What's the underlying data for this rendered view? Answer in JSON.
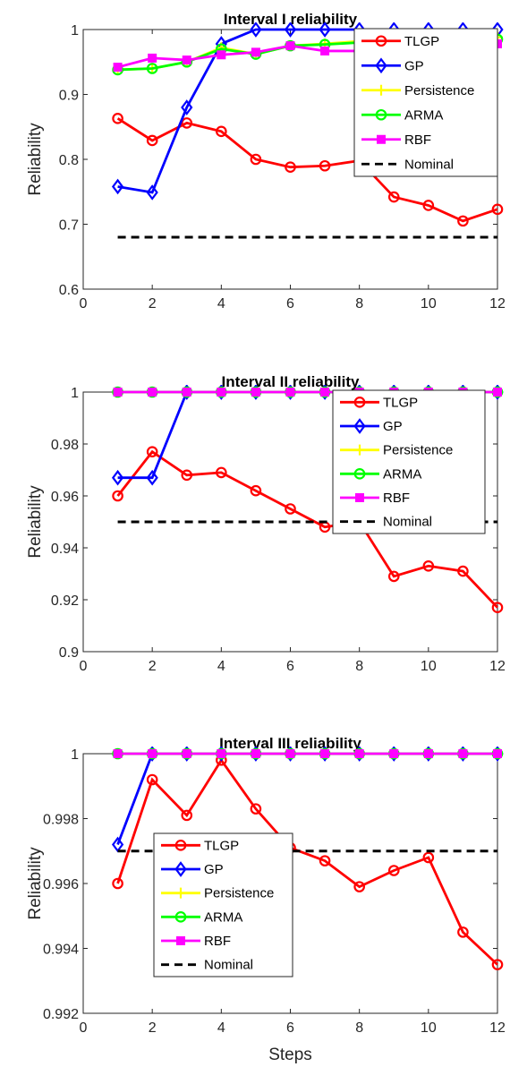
{
  "chart_data": [
    {
      "type": "line",
      "title": "Interval I reliability",
      "xlabel": "",
      "ylabel": "Reliability",
      "xlim": [
        0,
        12
      ],
      "ylim": [
        0.6,
        1
      ],
      "xticks": [
        0,
        2,
        4,
        6,
        8,
        10,
        12
      ],
      "yticks": [
        0.6,
        0.7,
        0.8,
        0.9,
        1
      ],
      "ytick_labels": [
        "0.6",
        "0.7",
        "0.8",
        "0.9",
        "1"
      ],
      "x": [
        1,
        2,
        3,
        4,
        5,
        6,
        7,
        8,
        9,
        10,
        11,
        12
      ],
      "grid": false,
      "legend_position": "top-right",
      "series": [
        {
          "name": "TLGP",
          "color": "#ff0000",
          "marker": "circle",
          "values": [
            0.863,
            0.829,
            0.856,
            0.843,
            0.8,
            0.788,
            0.79,
            0.798,
            0.742,
            0.729,
            0.705,
            0.723
          ]
        },
        {
          "name": "GP",
          "color": "#0000ff",
          "marker": "diamond",
          "values": [
            0.758,
            0.749,
            0.88,
            0.978,
            1.0,
            1.0,
            1.0,
            1.0,
            1.0,
            1.0,
            1.0,
            1.0
          ]
        },
        {
          "name": "Persistence",
          "color": "#ffff00",
          "marker": "plus",
          "values": [
            0.938,
            0.94,
            0.95,
            0.972,
            0.962,
            0.975,
            0.978,
            0.982,
            0.988,
            0.988,
            0.99,
            0.988
          ]
        },
        {
          "name": "ARMA",
          "color": "#00ff00",
          "marker": "circle",
          "values": [
            0.938,
            0.94,
            0.95,
            0.97,
            0.962,
            0.975,
            0.977,
            0.98,
            0.987,
            0.982,
            0.985,
            0.985
          ]
        },
        {
          "name": "RBF",
          "color": "#ff00ff",
          "marker": "square",
          "values": [
            0.942,
            0.956,
            0.953,
            0.961,
            0.965,
            0.975,
            0.967,
            0.967,
            0.965,
            0.975,
            0.978,
            0.978
          ]
        },
        {
          "name": "Nominal",
          "color": "#000000",
          "marker": "none",
          "dashed": true,
          "values": [
            0.68,
            0.68,
            0.68,
            0.68,
            0.68,
            0.68,
            0.68,
            0.68,
            0.68,
            0.68,
            0.68,
            0.68
          ]
        }
      ]
    },
    {
      "type": "line",
      "title": "Interval II reliability",
      "xlabel": "",
      "ylabel": "Reliability",
      "xlim": [
        0,
        12
      ],
      "ylim": [
        0.9,
        1
      ],
      "xticks": [
        0,
        2,
        4,
        6,
        8,
        10,
        12
      ],
      "yticks": [
        0.9,
        0.92,
        0.94,
        0.96,
        0.98,
        1
      ],
      "ytick_labels": [
        "0.9",
        "0.92",
        "0.94",
        "0.96",
        "0.98",
        "1"
      ],
      "x": [
        1,
        2,
        3,
        4,
        5,
        6,
        7,
        8,
        9,
        10,
        11,
        12
      ],
      "grid": false,
      "legend_position": "top-right",
      "series": [
        {
          "name": "TLGP",
          "color": "#ff0000",
          "marker": "circle",
          "values": [
            0.96,
            0.977,
            0.968,
            0.969,
            0.962,
            0.955,
            0.948,
            0.95,
            0.929,
            0.933,
            0.931,
            0.917
          ]
        },
        {
          "name": "GP",
          "color": "#0000ff",
          "marker": "diamond",
          "values": [
            0.967,
            0.967,
            1.0,
            1.0,
            1.0,
            1.0,
            1.0,
            1.0,
            1.0,
            1.0,
            1.0,
            1.0
          ]
        },
        {
          "name": "Persistence",
          "color": "#ffff00",
          "marker": "plus",
          "values": [
            1,
            1,
            1,
            1,
            1,
            1,
            1,
            1,
            1,
            1,
            1,
            1
          ]
        },
        {
          "name": "ARMA",
          "color": "#00ff00",
          "marker": "circle",
          "values": [
            1,
            1,
            1,
            1,
            1,
            1,
            1,
            1,
            1,
            1,
            1,
            1
          ]
        },
        {
          "name": "RBF",
          "color": "#ff00ff",
          "marker": "square",
          "values": [
            1,
            1,
            1,
            1,
            1,
            1,
            1,
            1,
            1,
            1,
            1,
            1
          ]
        },
        {
          "name": "Nominal",
          "color": "#000000",
          "marker": "none",
          "dashed": true,
          "values": [
            0.95,
            0.95,
            0.95,
            0.95,
            0.95,
            0.95,
            0.95,
            0.95,
            0.95,
            0.95,
            0.95,
            0.95
          ]
        }
      ]
    },
    {
      "type": "line",
      "title": "Interval III reliability",
      "xlabel": "Steps",
      "ylabel": "Reliability",
      "xlim": [
        0,
        12
      ],
      "ylim": [
        0.992,
        1
      ],
      "xticks": [
        0,
        2,
        4,
        6,
        8,
        10,
        12
      ],
      "yticks": [
        0.992,
        0.994,
        0.996,
        0.998,
        1
      ],
      "ytick_labels": [
        "0.992",
        "0.994",
        "0.996",
        "0.998",
        "1"
      ],
      "x": [
        1,
        2,
        3,
        4,
        5,
        6,
        7,
        8,
        9,
        10,
        11,
        12
      ],
      "grid": false,
      "legend_position": "bottom-left",
      "series": [
        {
          "name": "TLGP",
          "color": "#ff0000",
          "marker": "circle",
          "values": [
            0.996,
            0.9992,
            0.9981,
            0.9998,
            0.9983,
            0.9971,
            0.9967,
            0.9959,
            0.9964,
            0.9968,
            0.9945,
            0.9935
          ]
        },
        {
          "name": "GP",
          "color": "#0000ff",
          "marker": "diamond",
          "values": [
            0.9972,
            1,
            1,
            1,
            1,
            1,
            1,
            1,
            1,
            1,
            1,
            1
          ]
        },
        {
          "name": "Persistence",
          "color": "#ffff00",
          "marker": "plus",
          "values": [
            1,
            1,
            1,
            1,
            1,
            1,
            1,
            1,
            1,
            1,
            1,
            1
          ]
        },
        {
          "name": "ARMA",
          "color": "#00ff00",
          "marker": "circle",
          "values": [
            1,
            1,
            1,
            1,
            1,
            1,
            1,
            1,
            1,
            1,
            1,
            1
          ]
        },
        {
          "name": "RBF",
          "color": "#ff00ff",
          "marker": "square",
          "values": [
            1,
            1,
            1,
            1,
            1,
            1,
            1,
            1,
            1,
            1,
            1,
            1
          ]
        },
        {
          "name": "Nominal",
          "color": "#000000",
          "marker": "none",
          "dashed": true,
          "values": [
            0.997,
            0.997,
            0.997,
            0.997,
            0.997,
            0.997,
            0.997,
            0.997,
            0.997,
            0.997,
            0.997,
            0.997
          ]
        }
      ]
    }
  ]
}
